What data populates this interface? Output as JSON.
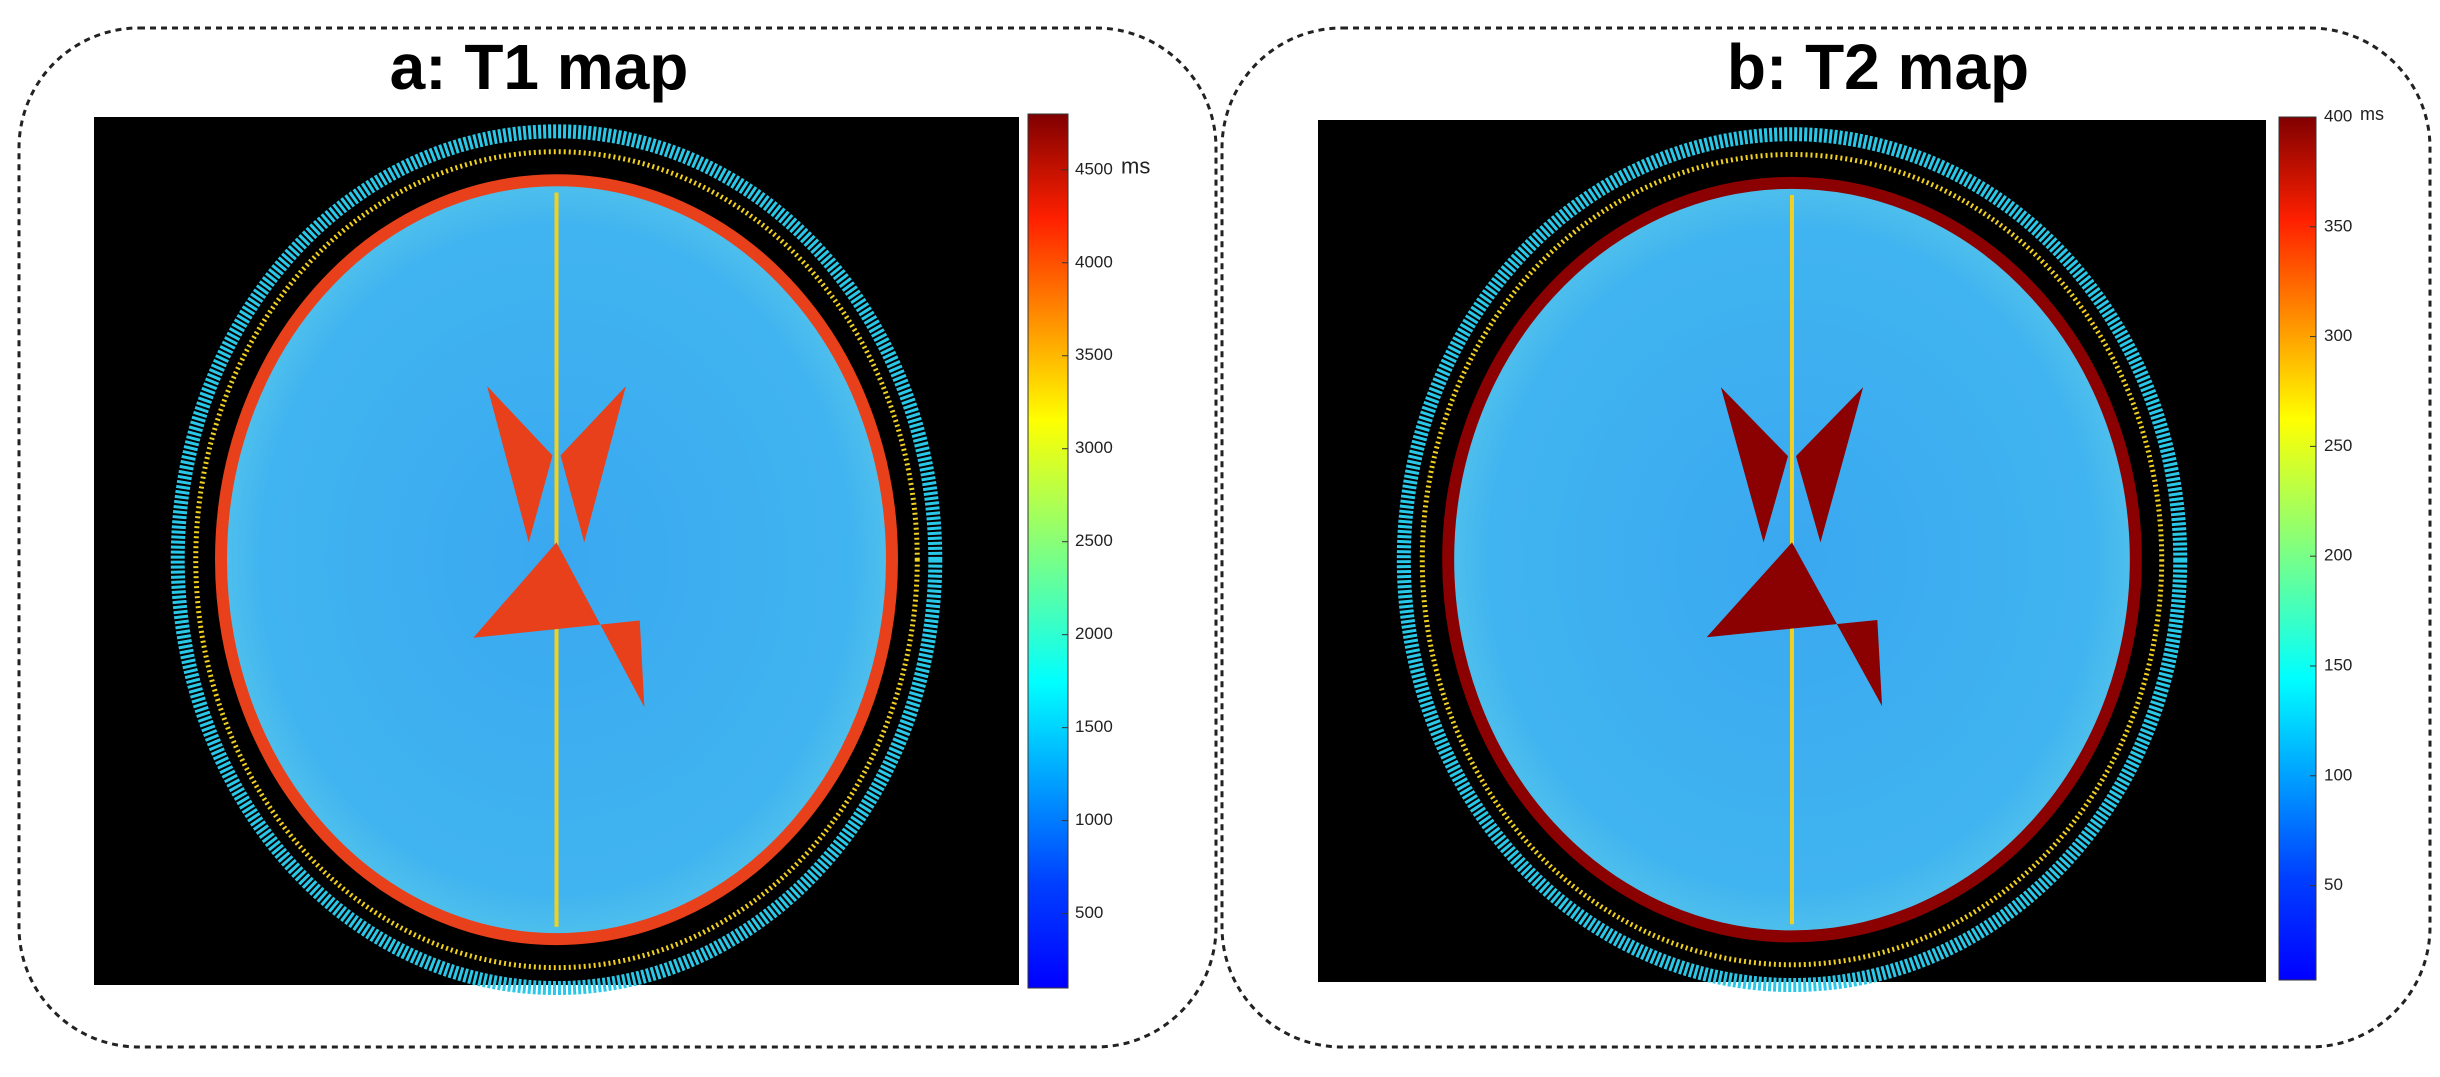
{
  "panels": [
    {
      "title": "a: T1 map",
      "edge_color": "#e8401a",
      "colorbar": {
        "range": [
          100,
          4800
        ],
        "ticks": [
          500,
          1000,
          1500,
          2000,
          2500,
          3000,
          3500,
          4000,
          4500
        ],
        "unit": "ms"
      }
    },
    {
      "title": "b: T2 map",
      "edge_color": "#8b0000",
      "colorbar": {
        "range": [
          7,
          400
        ],
        "ticks": [
          50,
          100,
          150,
          200,
          250,
          300,
          350,
          400
        ],
        "unit": "ms"
      }
    }
  ]
}
